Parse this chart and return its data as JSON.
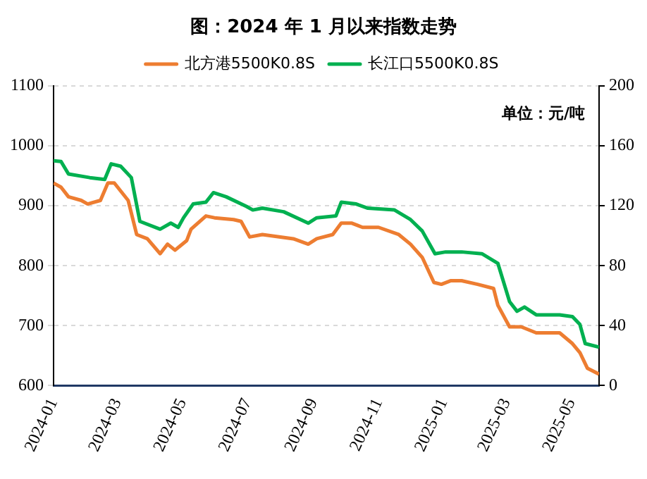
{
  "chart_data": {
    "type": "line",
    "title": "图：2024 年 1 月以来指数走势",
    "x": [
      "2024-01-01",
      "2024-01-08",
      "2024-01-15",
      "2024-01-27",
      "2024-02-02",
      "2024-02-14",
      "2024-02-21",
      "2024-02-27",
      "2024-03-11",
      "2024-03-19",
      "2024-03-29",
      "2024-04-10",
      "2024-04-17",
      "2024-04-24",
      "2024-05-05",
      "2024-05-09",
      "2024-05-23",
      "2024-05-31",
      "2024-06-18",
      "2024-06-25",
      "2024-07-03",
      "2024-07-15",
      "2024-08-13",
      "2024-08-27",
      "2024-09-04",
      "2024-09-19",
      "2024-09-27",
      "2024-10-07",
      "2024-10-17",
      "2024-11-01",
      "2024-11-20",
      "2024-12-01",
      "2024-12-12",
      "2024-12-23",
      "2024-12-30",
      "2025-01-08",
      "2025-01-18",
      "2025-02-02",
      "2025-02-17",
      "2025-02-21",
      "2025-03-04",
      "2025-03-15",
      "2025-03-29",
      "2025-04-20",
      "2025-05-02",
      "2025-05-09",
      "2025-05-16",
      "2025-05-27"
    ],
    "series": [
      {
        "name": "北方港5500K0.8S",
        "color": "#ed7d31",
        "values": [
          938,
          931,
          915,
          909,
          903,
          909,
          938,
          938,
          909,
          852,
          845,
          820,
          836,
          826,
          842,
          861,
          883,
          880,
          877,
          874,
          848,
          852,
          845,
          836,
          845,
          852,
          871,
          871,
          864,
          864,
          852,
          836,
          814,
          772,
          769,
          775,
          775,
          769,
          762,
          734,
          698,
          698,
          688,
          688,
          670,
          655,
          629,
          619
        ]
      },
      {
        "name": "长江口5500K0.8S",
        "color": "#00b050",
        "x": [
          "2024-01-01",
          "2024-01-08",
          "2024-01-15",
          "2024-02-04",
          "2024-02-18",
          "2024-02-24",
          "2024-03-04",
          "2024-03-14",
          "2024-03-22",
          "2024-04-10",
          "2024-04-20",
          "2024-04-27",
          "2024-05-02",
          "2024-05-11",
          "2024-05-23",
          "2024-05-30",
          "2024-06-11",
          "2024-06-30",
          "2024-07-06",
          "2024-07-15",
          "2024-08-04",
          "2024-08-27",
          "2024-09-04",
          "2024-09-22",
          "2024-09-27",
          "2024-10-11",
          "2024-10-22",
          "2024-11-16",
          "2024-12-01",
          "2024-12-12",
          "2024-12-24",
          "2025-01-03",
          "2025-01-18",
          "2025-02-06",
          "2025-02-21",
          "2025-03-04",
          "2025-03-11",
          "2025-03-18",
          "2025-03-29",
          "2025-04-20",
          "2025-05-02",
          "2025-05-09",
          "2025-05-14",
          "2025-05-27"
        ],
        "values": [
          975,
          974,
          953,
          947,
          944,
          970,
          966,
          947,
          874,
          861,
          871,
          864,
          880,
          903,
          906,
          922,
          915,
          899,
          893,
          896,
          890,
          871,
          880,
          883,
          906,
          903,
          896,
          893,
          877,
          858,
          820,
          823,
          823,
          820,
          804,
          740,
          724,
          731,
          718,
          718,
          715,
          702,
          670,
          664
        ]
      }
    ],
    "xlim": [
      "2024-01-01",
      "2025-05-27"
    ],
    "xticks": [
      "2024-01",
      "2024-03",
      "2024-05",
      "2024-07",
      "2024-09",
      "2024-11",
      "2025-01",
      "2025-03",
      "2025-05"
    ],
    "ylim": [
      600,
      1100
    ],
    "yticks": [
      600,
      700,
      800,
      900,
      1000,
      1100
    ],
    "y2lim": [
      0,
      200
    ],
    "y2ticks": [
      0,
      40,
      80,
      120,
      160,
      200
    ],
    "grid": "y",
    "legend": "top",
    "marker": "none",
    "line_style": "solid",
    "annotations": [
      "单位：元/吨"
    ]
  }
}
